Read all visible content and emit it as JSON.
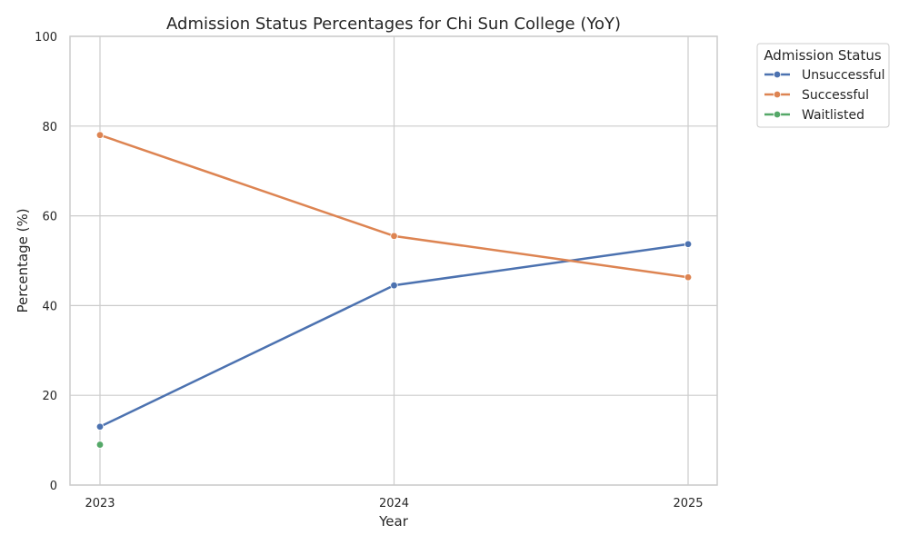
{
  "chart_data": {
    "type": "line",
    "title": "Admission Status Percentages for Chi Sun College (YoY)",
    "xlabel": "Year",
    "ylabel": "Percentage (%)",
    "x": [
      "2023",
      "2024",
      "2025"
    ],
    "ylim": [
      0,
      100
    ],
    "yticks": [
      0,
      20,
      40,
      60,
      80,
      100
    ],
    "grid": true,
    "legend": {
      "title": "Admission Status",
      "placement": "outside-top-right"
    },
    "series": [
      {
        "name": "Unsuccessful",
        "color": "#4c72b0",
        "values": [
          13.0,
          44.5,
          53.7
        ]
      },
      {
        "name": "Successful",
        "color": "#dd8452",
        "values": [
          78.0,
          55.5,
          46.3
        ]
      },
      {
        "name": "Waitlisted",
        "color": "#55a868",
        "values": [
          9.0,
          null,
          null
        ]
      }
    ]
  }
}
